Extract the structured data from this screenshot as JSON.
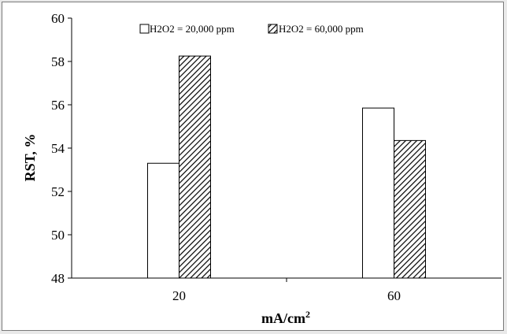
{
  "chart_data": {
    "type": "bar",
    "title": "",
    "categories": [
      "20",
      "60"
    ],
    "series": [
      {
        "name": "H2O2 = 20,000 ppm",
        "values": [
          53.3,
          55.85
        ],
        "fill": "#ffffff"
      },
      {
        "name": "H2O2 = 60,000 ppm",
        "values": [
          58.25,
          54.35
        ],
        "fill": "hatched"
      }
    ],
    "xlabel": "mA/cm",
    "xlabel_sup": "2",
    "ylabel": "RST, %",
    "ylim": [
      48,
      60
    ],
    "yticks": [
      "48",
      "50",
      "52",
      "54",
      "56",
      "58",
      "60"
    ],
    "grid": false,
    "legend_position": "top"
  }
}
